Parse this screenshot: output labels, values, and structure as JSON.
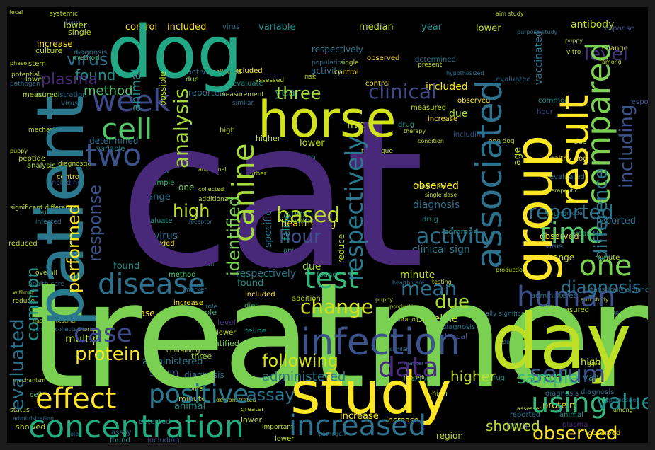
{
  "words": [
    {
      "text": "dog",
      "color": "#22a884"
    },
    {
      "text": "cat",
      "color": "#482878"
    },
    {
      "text": "treatment",
      "color": "#7ad151"
    },
    {
      "text": "patient",
      "color": "#2a788e"
    },
    {
      "text": "study",
      "color": "#fde725"
    },
    {
      "text": "day",
      "color": "#bddf26"
    },
    {
      "text": "horse",
      "color": "#d2e21b"
    },
    {
      "text": "group",
      "color": "#fde725"
    },
    {
      "text": "infection",
      "color": "#3b528b"
    },
    {
      "text": "concentration",
      "color": "#25ab82"
    },
    {
      "text": "increased",
      "color": "#2c728e"
    },
    {
      "text": "disease",
      "color": "#2c728e"
    },
    {
      "text": "test",
      "color": "#35b779"
    },
    {
      "text": "human",
      "color": "#3b528b"
    },
    {
      "text": "time",
      "color": "#54c568"
    },
    {
      "text": "result",
      "color": "#fde725"
    },
    {
      "text": "compared",
      "color": "#7ad151"
    },
    {
      "text": "associated",
      "color": "#2c728e"
    },
    {
      "text": "canine",
      "color": "#a5db36"
    },
    {
      "text": "cell",
      "color": "#54c568"
    },
    {
      "text": "two",
      "color": "#3b528b"
    },
    {
      "text": "week",
      "color": "#3e4a89"
    },
    {
      "text": "effect",
      "color": "#fde725"
    },
    {
      "text": "positive",
      "color": "#2a788e"
    },
    {
      "text": "using",
      "color": "#35b779"
    },
    {
      "text": "serum",
      "color": "#3b528b"
    },
    {
      "text": "data",
      "color": "#472d7b"
    },
    {
      "text": "case",
      "color": "#3e4a89"
    },
    {
      "text": "one",
      "color": "#7ad151"
    },
    {
      "text": "change",
      "color": "#d2e21b"
    },
    {
      "text": "clinical",
      "color": "#3e4a89"
    },
    {
      "text": "level",
      "color": "#46337e"
    },
    {
      "text": "based",
      "color": "#bddf26"
    },
    {
      "text": "activity",
      "color": "#2c728e"
    },
    {
      "text": "evaluated",
      "color": "#2c728e"
    },
    {
      "text": "respectively",
      "color": "#2a788e"
    },
    {
      "text": "analysis",
      "color": "#a5db36"
    },
    {
      "text": "mean",
      "color": "#2c728e"
    },
    {
      "text": "following",
      "color": "#d2e21b"
    },
    {
      "text": "value",
      "color": "#21918c"
    },
    {
      "text": "observed",
      "color": "#fde725"
    },
    {
      "text": "protein",
      "color": "#fde725"
    },
    {
      "text": "reported",
      "color": "#2c728e"
    },
    {
      "text": "hour",
      "color": "#3b528b"
    },
    {
      "text": "identified",
      "color": "#7ad151"
    },
    {
      "text": "high",
      "color": "#bddf26"
    },
    {
      "text": "performed",
      "color": "#fde725"
    },
    {
      "text": "response",
      "color": "#3b528b"
    },
    {
      "text": "common",
      "color": "#21918c"
    },
    {
      "text": "three",
      "color": "#a5db36"
    },
    {
      "text": "including",
      "color": "#3b528b"
    },
    {
      "text": "difference",
      "color": "#2a788e"
    },
    {
      "text": "diagnosis",
      "color": "#2c728e"
    },
    {
      "text": "due",
      "color": "#a5db36"
    },
    {
      "text": "assay",
      "color": "#2c728e"
    },
    {
      "text": "sample",
      "color": "#35b779"
    },
    {
      "text": "administered",
      "color": "#2a788e"
    },
    {
      "text": "higher",
      "color": "#bddf26"
    },
    {
      "text": "found",
      "color": "#21918c"
    },
    {
      "text": "method",
      "color": "#54c568"
    },
    {
      "text": "virus",
      "color": "#2c728e"
    },
    {
      "text": "plasma",
      "color": "#482878"
    },
    {
      "text": "control",
      "color": "#fde725"
    },
    {
      "text": "included",
      "color": "#fde725"
    },
    {
      "text": "increase",
      "color": "#fde725"
    },
    {
      "text": "healthy dog",
      "color": "#fde725"
    },
    {
      "text": "determined",
      "color": "#2c728e"
    },
    {
      "text": "normal",
      "color": "#bddf26"
    },
    {
      "text": "minute",
      "color": "#bddf26"
    },
    {
      "text": "vaccine",
      "color": "#bddf26"
    },
    {
      "text": "evaluate",
      "color": "#21918c"
    },
    {
      "text": "variable",
      "color": "#21918c"
    },
    {
      "text": "year",
      "color": "#21918c"
    },
    {
      "text": "diet",
      "color": "#35b779"
    },
    {
      "text": "drug",
      "color": "#21918c"
    },
    {
      "text": "lower",
      "color": "#bddf26"
    },
    {
      "text": "animal",
      "color": "#21918c"
    },
    {
      "text": "presence",
      "color": "#bddf26"
    },
    {
      "text": "peptide",
      "color": "#bddf26"
    },
    {
      "text": "range",
      "color": "#2c728e"
    },
    {
      "text": "measured",
      "color": "#bddf26"
    },
    {
      "text": "clinical sign",
      "color": "#2a788e"
    },
    {
      "text": "median",
      "color": "#bddf26"
    },
    {
      "text": "detected",
      "color": "#2c728e"
    },
    {
      "text": "multiple",
      "color": "#bddf26"
    },
    {
      "text": "non",
      "color": "#bddf26"
    },
    {
      "text": "within",
      "color": "#2c728e"
    },
    {
      "text": "specific",
      "color": "#2c728e"
    },
    {
      "text": "feline",
      "color": "#21918c"
    },
    {
      "text": "first",
      "color": "#bddf26"
    },
    {
      "text": "related",
      "color": "#bddf26"
    },
    {
      "text": "month",
      "color": "#21918c"
    },
    {
      "text": "stem",
      "color": "#bddf26"
    },
    {
      "text": "decreased",
      "color": "#bddf26"
    },
    {
      "text": "age",
      "color": "#bddf26"
    },
    {
      "text": "fluid",
      "color": "#2c728e"
    },
    {
      "text": "number",
      "color": "#bddf26"
    },
    {
      "text": "addition",
      "color": "#bddf26"
    },
    {
      "text": "prior",
      "color": "#2c728e"
    },
    {
      "text": "baseline",
      "color": "#bddf26"
    },
    {
      "text": "although",
      "color": "#2c728e"
    },
    {
      "text": "severity",
      "color": "#21918c"
    },
    {
      "text": "antibody",
      "color": "#bddf26"
    },
    {
      "text": "different",
      "color": "#2c728e"
    },
    {
      "text": "outcome",
      "color": "#bddf26"
    },
    {
      "text": "six",
      "color": "#bddf26"
    },
    {
      "text": "function",
      "color": "#bddf26"
    },
    {
      "text": "factor",
      "color": "#bddf26"
    },
    {
      "text": "five",
      "color": "#bddf26"
    },
    {
      "text": "four",
      "color": "#bddf26"
    },
    {
      "text": "amp",
      "color": "#bddf26"
    },
    {
      "text": "showed",
      "color": "#bddf26"
    },
    {
      "text": "secondary",
      "color": "#bddf26"
    },
    {
      "text": "elevated",
      "color": "#bddf26"
    },
    {
      "text": "structure",
      "color": "#bddf26"
    },
    {
      "text": "association",
      "color": "#bddf26"
    },
    {
      "text": "expression",
      "color": "#21918c"
    },
    {
      "text": "identify",
      "color": "#bddf26"
    },
    {
      "text": "region",
      "color": "#bddf26"
    },
    {
      "text": "likely",
      "color": "#bddf26"
    },
    {
      "text": "hcai",
      "color": "#2c728e"
    },
    {
      "text": "site",
      "color": "#2c728e"
    },
    {
      "text": "area",
      "color": "#2c728e"
    },
    {
      "text": "ratio",
      "color": "#2c728e"
    },
    {
      "text": "image",
      "color": "#bddf26"
    },
    {
      "text": "vivo",
      "color": "#bddf26"
    },
    {
      "text": "research",
      "color": "#bddf26"
    },
    {
      "text": "inhibition",
      "color": "#2c728e"
    },
    {
      "text": "hospital",
      "color": "#bddf26"
    },
    {
      "text": "spinal cord",
      "color": "#bddf26"
    },
    {
      "text": "surgery",
      "color": "#bddf26"
    },
    {
      "text": "tissue",
      "color": "#bddf26"
    },
    {
      "text": "food",
      "color": "#bddf26"
    },
    {
      "text": "total",
      "color": "#bddf26"
    },
    {
      "text": "unknown",
      "color": "#2c728e"
    },
    {
      "text": "mg dl",
      "color": "#bddf26"
    },
    {
      "text": "therefore",
      "color": "#bddf26"
    },
    {
      "text": "correlation",
      "color": "#bddf26"
    },
    {
      "text": "vaccinated",
      "color": "#2c728e"
    },
    {
      "text": "parameter",
      "color": "#bddf26"
    },
    {
      "text": "considered",
      "color": "#bddf26"
    },
    {
      "text": "previous",
      "color": "#2c728e"
    },
    {
      "text": "vaccination",
      "color": "#bddf26"
    },
    {
      "text": "treated",
      "color": "#bddf26"
    },
    {
      "text": "comparison",
      "color": "#bddf26"
    },
    {
      "text": "primary",
      "color": "#2c728e"
    },
    {
      "text": "equine",
      "color": "#2c728e"
    },
    {
      "text": "evidence",
      "color": "#2c728e"
    },
    {
      "text": "standard",
      "color": "#bddf26"
    },
    {
      "text": "evaluation",
      "color": "#bddf26"
    },
    {
      "text": "possible",
      "color": "#bddf26"
    },
    {
      "text": "obtained",
      "color": "#bddf26"
    },
    {
      "text": "various",
      "color": "#bddf26"
    },
    {
      "text": "receptor",
      "color": "#2c728e"
    },
    {
      "text": "role",
      "color": "#2c728e"
    },
    {
      "text": "pathogen",
      "color": "#2c728e"
    },
    {
      "text": "culture",
      "color": "#bddf26"
    },
    {
      "text": "single",
      "color": "#bddf26"
    },
    {
      "text": "important",
      "color": "#bddf26"
    },
    {
      "text": "population",
      "color": "#2c728e"
    },
    {
      "text": "viral",
      "color": "#bddf26"
    },
    {
      "text": "present",
      "color": "#bddf26"
    },
    {
      "text": "assessed",
      "color": "#bddf26"
    },
    {
      "text": "marker",
      "color": "#2c728e"
    },
    {
      "text": "determine",
      "color": "#2c728e"
    },
    {
      "text": "developed",
      "color": "#bddf26"
    },
    {
      "text": "similar",
      "color": "#2c728e"
    },
    {
      "text": "veterinary",
      "color": "#2c728e"
    },
    {
      "text": "collected",
      "color": "#bddf26"
    },
    {
      "text": "altered",
      "color": "#bddf26"
    },
    {
      "text": "hypothesized",
      "color": "#2c728e"
    },
    {
      "text": "significantly",
      "color": "#2c728e"
    },
    {
      "text": "either",
      "color": "#bddf26"
    },
    {
      "text": "investigation",
      "color": "#2c728e"
    },
    {
      "text": "conclusion",
      "color": "#2c728e"
    },
    {
      "text": "measurement",
      "color": "#bddf26"
    },
    {
      "text": "diagnostic",
      "color": "#bddf26"
    },
    {
      "text": "available",
      "color": "#bddf26"
    },
    {
      "text": "additional",
      "color": "#bddf26"
    },
    {
      "text": "infected",
      "color": "#2c728e"
    },
    {
      "text": "containing",
      "color": "#bddf26"
    },
    {
      "text": "gastrointestinal",
      "color": "#bddf26"
    },
    {
      "text": "pcr",
      "color": "#bddf26"
    },
    {
      "text": "technique",
      "color": "#bddf26"
    },
    {
      "text": "status",
      "color": "#bddf26"
    },
    {
      "text": "procedure",
      "color": "#bddf26"
    },
    {
      "text": "overall",
      "color": "#bddf26"
    },
    {
      "text": "characterized",
      "color": "#bddf26"
    },
    {
      "text": "administration",
      "color": "#2c728e"
    },
    {
      "text": "mechanism",
      "color": "#bddf26"
    },
    {
      "text": "potential",
      "color": "#bddf26"
    },
    {
      "text": "significant difference",
      "color": "#bddf26"
    },
    {
      "text": "significant",
      "color": "#bddf26"
    },
    {
      "text": "prevalence",
      "color": "#2c728e"
    },
    {
      "text": "combination",
      "color": "#2c728e"
    },
    {
      "text": "greater",
      "color": "#bddf26"
    },
    {
      "text": "whether",
      "color": "#2c728e"
    },
    {
      "text": "systemic",
      "color": "#bddf26"
    },
    {
      "text": "community",
      "color": "#bddf26"
    },
    {
      "text": "duration",
      "color": "#bddf26"
    },
    {
      "text": "reduce",
      "color": "#bddf26"
    },
    {
      "text": "health care",
      "color": "#2c728e"
    },
    {
      "text": "amino acid",
      "color": "#bddf26"
    },
    {
      "text": "clinically",
      "color": "#2c728e"
    },
    {
      "text": "risk",
      "color": "#bddf26"
    },
    {
      "text": "fecal",
      "color": "#bddf26"
    },
    {
      "text": "development",
      "color": "#bddf26"
    },
    {
      "text": "defensin",
      "color": "#2c728e"
    },
    {
      "text": "respiratory",
      "color": "#2c728e"
    },
    {
      "text": "recently",
      "color": "#2c728e"
    },
    {
      "text": "detection",
      "color": "#2c728e"
    },
    {
      "text": "versus",
      "color": "#bddf26"
    },
    {
      "text": "occur",
      "color": "#bddf26"
    },
    {
      "text": "condition",
      "color": "#bddf26"
    },
    {
      "text": "received",
      "color": "#2c728e"
    },
    {
      "text": "purpose study",
      "color": "#2c728e"
    },
    {
      "text": "sample collected",
      "color": "#2c728e"
    },
    {
      "text": "upper",
      "color": "#bddf26"
    },
    {
      "text": "without",
      "color": "#bddf26"
    },
    {
      "text": "vitro",
      "color": "#bddf26"
    },
    {
      "text": "statistically significant",
      "color": "#2c728e"
    },
    {
      "text": "aim study",
      "color": "#bddf26"
    },
    {
      "text": "medical record",
      "color": "#bddf26"
    },
    {
      "text": "highly",
      "color": "#bddf26"
    },
    {
      "text": "therapeutic",
      "color": "#bddf26"
    },
    {
      "text": "demonstrated",
      "color": "#bddf26"
    },
    {
      "text": "one dog",
      "color": "#bddf26"
    },
    {
      "text": "puppy",
      "color": "#bddf26"
    },
    {
      "text": "phase",
      "color": "#bddf26"
    },
    {
      "text": "among",
      "color": "#bddf26"
    },
    {
      "text": "testing",
      "color": "#bddf26"
    },
    {
      "text": "production",
      "color": "#bddf26"
    },
    {
      "text": "therapy",
      "color": "#bddf26"
    },
    {
      "text": "model",
      "color": "#2c728e"
    },
    {
      "text": "dose",
      "color": "#bddf26"
    },
    {
      "text": "second",
      "color": "#bddf26"
    },
    {
      "text": "heart rate",
      "color": "#bddf26"
    },
    {
      "text": "significantly higher",
      "color": "#bddf26"
    },
    {
      "text": "mouse",
      "color": "#bddf26"
    },
    {
      "text": "reduced",
      "color": "#bddf26"
    },
    {
      "text": "single dose",
      "color": "#bddf26"
    },
    {
      "text": "inflammatory",
      "color": "#bddf26"
    },
    {
      "text": "major",
      "color": "#bddf26"
    },
    {
      "text": "cause",
      "color": "#2c728e"
    },
    {
      "text": "inhibit",
      "color": "#bddf26"
    }
  ]
}
